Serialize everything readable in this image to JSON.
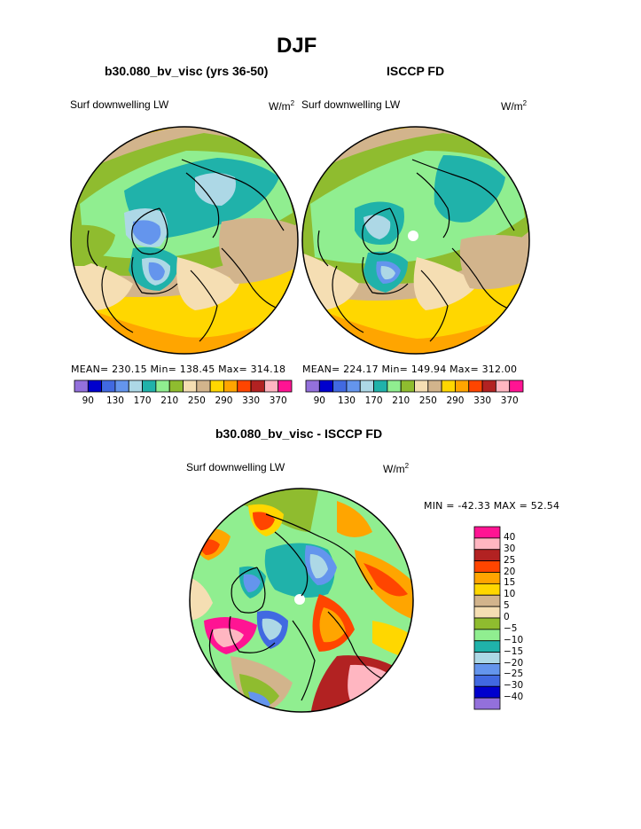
{
  "page": {
    "title": "DJF"
  },
  "panels": [
    {
      "title": "b30.080_bv_visc (yrs 36-50)",
      "variable": "Surf downwelling LW",
      "unit_base": "W/m",
      "unit_exp": "2",
      "stats": "MEAN= 230.15   Min= 138.45   Max= 314.18"
    },
    {
      "title": "ISCCP FD",
      "variable": "Surf downwelling LW",
      "unit_base": "W/m",
      "unit_exp": "2",
      "stats": "MEAN= 224.17   Min= 149.94   Max= 312.00"
    },
    {
      "title": "b30.080_bv_visc - ISCCP FD",
      "variable": "Surf downwelling LW",
      "unit_base": "W/m",
      "unit_exp": "2",
      "stats": "MIN = -42.33  MAX =   52.54"
    }
  ],
  "colorbar_top": {
    "colors": [
      "#9370db",
      "#0000cd",
      "#4169e1",
      "#6495ed",
      "#add8e6",
      "#20b2aa",
      "#90ee90",
      "#8fbc2f",
      "#f5deb3",
      "#d2b48c",
      "#ffd700",
      "#ffa500",
      "#ff4500",
      "#b22222",
      "#ffb6c1",
      "#ff1493"
    ],
    "tick_labels": [
      "90",
      "130",
      "170",
      "210",
      "250",
      "290",
      "330",
      "370"
    ]
  },
  "colorbar_diff": {
    "colors": [
      "#ff1493",
      "#ffb6c1",
      "#b22222",
      "#ff4500",
      "#ffa500",
      "#ffd700",
      "#d2b48c",
      "#f5deb3",
      "#8fbc2f",
      "#90ee90",
      "#20b2aa",
      "#add8e6",
      "#6495ed",
      "#4169e1",
      "#0000cd",
      "#9370db"
    ],
    "tick_labels": [
      "40",
      "30",
      "25",
      "20",
      "15",
      "10",
      "5",
      "0",
      "−5",
      "−10",
      "−15",
      "−20",
      "−25",
      "−30",
      "−40"
    ]
  },
  "maps": [
    {
      "name": "model-map",
      "projection": "polar-stereographic",
      "hemisphere": "north"
    },
    {
      "name": "obs-map",
      "projection": "polar-stereographic",
      "hemisphere": "north"
    },
    {
      "name": "diff-map",
      "projection": "polar-stereographic",
      "hemisphere": "north"
    }
  ]
}
